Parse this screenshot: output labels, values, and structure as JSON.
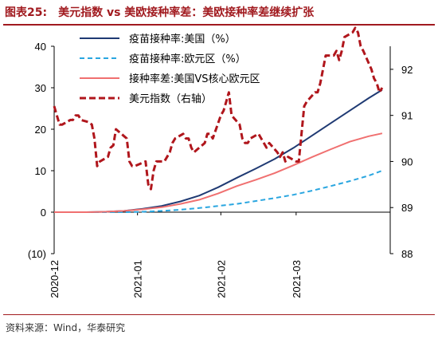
{
  "header": {
    "figure_label": "图表25:",
    "title": "美元指数 vs 美欧接种率差：美欧接种率差继续扩张"
  },
  "footer": {
    "source": "资料来源：Wind，华泰研究"
  },
  "chart_data": {
    "type": "line",
    "x_ticks": [
      "2020-12",
      "2021-01",
      "2021-02",
      "2021-03"
    ],
    "x_range": [
      "2020-12-01",
      "2021-04-05"
    ],
    "y_left": {
      "range": [
        -10,
        40
      ],
      "ticks": [
        -10,
        0,
        10,
        20,
        30,
        40
      ],
      "tick_labels": [
        "(10)",
        "0",
        "10",
        "20",
        "30",
        "40"
      ]
    },
    "y_right": {
      "range": [
        88,
        92.5
      ],
      "ticks": [
        88,
        89,
        90,
        91,
        92
      ],
      "tick_labels": [
        "88",
        "89",
        "90",
        "91",
        "92"
      ]
    },
    "grid": false,
    "legend": "top-left",
    "series": [
      {
        "name": "疫苗接种率:美国（%）",
        "axis": "left",
        "color": "#1f3a73",
        "style": "solid",
        "x": [
          "2020-12-01",
          "2020-12-13",
          "2020-12-20",
          "2020-12-27",
          "2021-01-03",
          "2021-01-10",
          "2021-01-17",
          "2021-01-24",
          "2021-01-31",
          "2021-02-07",
          "2021-02-14",
          "2021-02-21",
          "2021-02-28",
          "2021-03-07",
          "2021-03-14",
          "2021-03-21",
          "2021-03-28",
          "2021-04-02"
        ],
        "y": [
          0,
          0,
          0.1,
          0.3,
          0.8,
          1.5,
          2.6,
          4.0,
          6.0,
          8.3,
          10.5,
          12.8,
          15.5,
          18.5,
          21.5,
          24.5,
          27.5,
          29.5
        ]
      },
      {
        "name": "疫苗接种率:欧元区（%）",
        "axis": "left",
        "color": "#2aa6e0",
        "style": "dashed",
        "x": [
          "2020-12-01",
          "2020-12-27",
          "2021-01-03",
          "2021-01-10",
          "2021-01-17",
          "2021-01-24",
          "2021-01-31",
          "2021-02-07",
          "2021-02-14",
          "2021-02-21",
          "2021-02-28",
          "2021-03-07",
          "2021-03-14",
          "2021-03-21",
          "2021-03-28",
          "2021-04-02"
        ],
        "y": [
          0,
          0,
          0.1,
          0.3,
          0.6,
          1.0,
          1.5,
          2.0,
          2.7,
          3.4,
          4.2,
          5.2,
          6.3,
          7.5,
          8.8,
          10.0
        ]
      },
      {
        "name": "接种率差:美国VS核心欧元区",
        "axis": "left",
        "color": "#f07070",
        "style": "solid",
        "x": [
          "2020-12-01",
          "2020-12-13",
          "2020-12-20",
          "2020-12-27",
          "2021-01-03",
          "2021-01-10",
          "2021-01-17",
          "2021-01-24",
          "2021-01-31",
          "2021-02-07",
          "2021-02-14",
          "2021-02-21",
          "2021-02-28",
          "2021-03-07",
          "2021-03-14",
          "2021-03-21",
          "2021-03-28",
          "2021-04-02"
        ],
        "y": [
          0,
          0,
          0.1,
          0.3,
          0.7,
          1.2,
          2.0,
          3.0,
          4.5,
          6.3,
          7.8,
          9.4,
          11.3,
          13.3,
          15.2,
          17.0,
          18.3,
          19.0
        ]
      },
      {
        "name": "美元指数（右轴）",
        "axis": "right",
        "color": "#b0161c",
        "style": "dashed",
        "x": [
          "2020-12-01",
          "2020-12-02",
          "2020-12-03",
          "2020-12-04",
          "2020-12-07",
          "2020-12-08",
          "2020-12-09",
          "2020-12-10",
          "2020-12-11",
          "2020-12-14",
          "2020-12-15",
          "2020-12-16",
          "2020-12-17",
          "2020-12-18",
          "2020-12-21",
          "2020-12-22",
          "2020-12-23",
          "2020-12-24",
          "2020-12-28",
          "2020-12-29",
          "2020-12-30",
          "2020-12-31",
          "2021-01-04",
          "2021-01-05",
          "2021-01-06",
          "2021-01-07",
          "2021-01-08",
          "2021-01-11",
          "2021-01-12",
          "2021-01-13",
          "2021-01-14",
          "2021-01-15",
          "2021-01-18",
          "2021-01-19",
          "2021-01-20",
          "2021-01-21",
          "2021-01-22",
          "2021-01-25",
          "2021-01-26",
          "2021-01-27",
          "2021-01-28",
          "2021-01-29",
          "2021-02-01",
          "2021-02-02",
          "2021-02-03",
          "2021-02-04",
          "2021-02-05",
          "2021-02-08",
          "2021-02-09",
          "2021-02-10",
          "2021-02-11",
          "2021-02-12",
          "2021-02-15",
          "2021-02-16",
          "2021-02-17",
          "2021-02-18",
          "2021-02-19",
          "2021-02-22",
          "2021-02-23",
          "2021-02-24",
          "2021-02-25",
          "2021-02-26",
          "2021-03-01",
          "2021-03-02",
          "2021-03-03",
          "2021-03-04",
          "2021-03-05",
          "2021-03-08",
          "2021-03-09",
          "2021-03-10",
          "2021-03-11",
          "2021-03-12",
          "2021-03-15",
          "2021-03-16",
          "2021-03-17",
          "2021-03-18",
          "2021-03-19",
          "2021-03-22",
          "2021-03-23",
          "2021-03-24",
          "2021-03-25",
          "2021-03-26",
          "2021-03-29",
          "2021-03-30",
          "2021-03-31",
          "2021-04-01",
          "2021-04-02"
        ],
        "y": [
          91.2,
          91.0,
          90.8,
          90.8,
          90.9,
          90.9,
          91.0,
          91.0,
          90.9,
          90.85,
          90.8,
          90.5,
          89.9,
          90.0,
          90.1,
          90.3,
          90.35,
          90.7,
          90.5,
          90.0,
          89.9,
          89.9,
          90.0,
          89.5,
          89.4,
          89.8,
          90.0,
          90.0,
          90.1,
          90.2,
          90.4,
          90.5,
          90.6,
          90.5,
          90.5,
          90.3,
          90.2,
          90.35,
          90.4,
          90.6,
          90.6,
          90.5,
          91.0,
          91.1,
          91.3,
          91.5,
          91.0,
          90.8,
          90.5,
          90.4,
          90.4,
          90.5,
          90.6,
          90.5,
          90.4,
          90.3,
          90.4,
          90.2,
          90.1,
          90.2,
          90.0,
          90.1,
          90.0,
          90.0,
          90.6,
          91.2,
          91.3,
          91.5,
          91.5,
          91.7,
          92.0,
          92.3,
          92.3,
          92.4,
          92.2,
          92.4,
          92.7,
          92.8,
          92.9,
          92.8,
          92.5,
          92.4,
          92.0,
          91.8,
          91.7,
          91.5,
          91.6
        ]
      }
    ]
  }
}
